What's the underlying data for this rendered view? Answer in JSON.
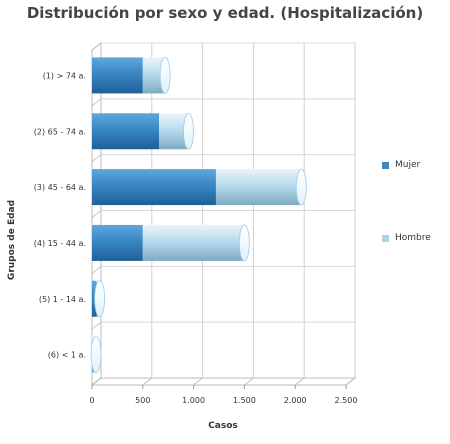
{
  "chart_data": {
    "type": "bar",
    "orientation": "horizontal",
    "stacked": true,
    "title": "Distribución por sexo y edad. (Hospitalización)",
    "xlabel": "Casos",
    "ylabel": "Grupos de Edad",
    "categories": [
      "(1) > 74 a.",
      "(2) 65 - 74 a.",
      "(3) 45 - 64 a.",
      "(4) 15 - 44 a.",
      "(5) 1 - 14 a.",
      "(6) < 1 a."
    ],
    "series": [
      {
        "name": "Mujer",
        "values": [
          500,
          660,
          1220,
          500,
          45,
          0
        ],
        "color": "#3a87c4"
      },
      {
        "name": "Hombre",
        "values": [
          220,
          290,
          840,
          1000,
          30,
          40
        ],
        "color": "#a9d4ea"
      }
    ],
    "xlim": [
      0,
      2500
    ],
    "xticks": [
      0,
      500,
      1000,
      1500,
      2000,
      2500
    ],
    "xtick_labels": [
      "0",
      "500",
      "1.000",
      "1.500",
      "2.000",
      "2.500"
    ],
    "grid": true,
    "legend_position": "right"
  }
}
